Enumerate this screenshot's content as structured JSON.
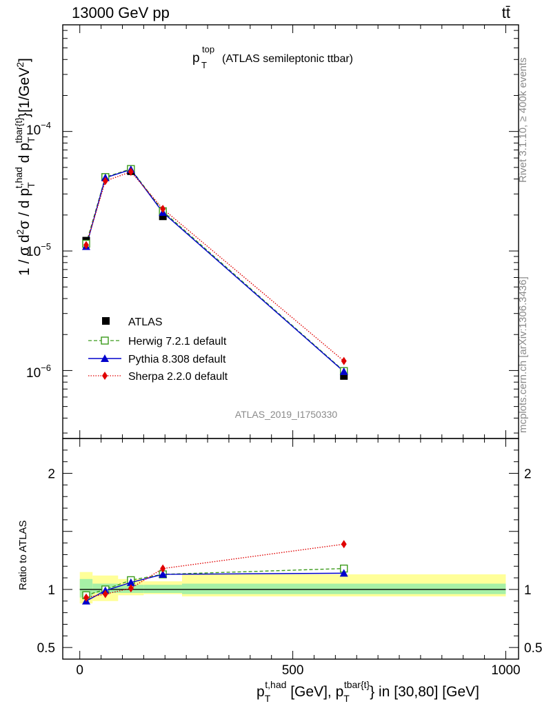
{
  "header": {
    "left": "13000 GeV pp",
    "right": "tt̄"
  },
  "side": {
    "rivet": "Rivet 3.1.10, ≥ 400k events",
    "mcplots": "mcplots.cern.ch [arXiv:1306.3436]"
  },
  "watermark": "ATLAS_2019_I1750330",
  "colors": {
    "atlas": "#000000",
    "herwig": "#3a9a1a",
    "pythia": "#0000cc",
    "sherpa": "#e00000",
    "band_inner": "#a6f0a6",
    "band_outer": "#ffff99"
  },
  "chart_data": [
    {
      "type": "line",
      "title_main": "p",
      "title_sub": "T",
      "title_sup": "top",
      "title_rest": "(ATLAS semileptonic ttbar)",
      "ylabel": "1 / σ d²σ / d p_T^{t,had} d p_T^{tbar{t}} [1/GeV²]",
      "yscale": "log",
      "ylim": [
        2.7e-07,
        0.00078
      ],
      "xlim": [
        -40,
        1030
      ],
      "ytick_labels": {
        "e6": "10",
        "e5": "10",
        "e4": "10",
        "e6_exp": "−6",
        "e5_exp": "−5",
        "e4_exp": "−4"
      },
      "legend": [
        {
          "name": "ATLAS"
        },
        {
          "name": "Herwig 7.2.1 default"
        },
        {
          "name": "Pythia 8.308 default"
        },
        {
          "name": "Sherpa 2.2.0 default"
        }
      ],
      "series": [
        {
          "name": "ATLAS",
          "x": [
            15,
            60,
            120,
            195,
            620
          ],
          "y": [
            1.22e-05,
            4.15e-05,
            4.65e-05,
            1.95e-05,
            9e-07
          ]
        },
        {
          "name": "Herwig 7.2.1 default",
          "x": [
            15,
            60,
            120,
            195,
            620
          ],
          "y": [
            1.15e-05,
            4.15e-05,
            4.85e-05,
            2.15e-05,
            9.9e-07
          ]
        },
        {
          "name": "Pythia 8.308 default",
          "x": [
            15,
            60,
            120,
            195,
            620
          ],
          "y": [
            1.09e-05,
            4.1e-05,
            4.8e-05,
            2.1e-05,
            9.8e-07
          ]
        },
        {
          "name": "Sherpa 2.2.0 default",
          "x": [
            15,
            60,
            120,
            195,
            620
          ],
          "y": [
            1.12e-05,
            3.85e-05,
            4.6e-05,
            2.25e-05,
            1.2e-06
          ]
        }
      ]
    },
    {
      "type": "line",
      "ylabel": "Ratio to ATLAS",
      "ylim": [
        0.4,
        2.3
      ],
      "xlim": [
        -40,
        1030
      ],
      "yticks": [
        0.5,
        1,
        2
      ],
      "ytick_labels": [
        "0.5",
        "1",
        "2"
      ],
      "xticks": [
        0,
        500,
        1000
      ],
      "xtick_labels": [
        "0",
        "500",
        "1000"
      ],
      "xlabel": "p_T^{t,had} [GeV], p_T^{tbar{t}} in [30,80] [GeV]",
      "bands": [
        {
          "x": [
            0,
            30
          ],
          "inner": [
            0.93,
            1.09
          ],
          "outer": [
            0.88,
            1.15
          ]
        },
        {
          "x": [
            30,
            90
          ],
          "inner": [
            0.97,
            1.05
          ],
          "outer": [
            0.9,
            1.12
          ]
        },
        {
          "x": [
            90,
            150
          ],
          "inner": [
            0.97,
            1.04
          ],
          "outer": [
            0.95,
            1.09
          ]
        },
        {
          "x": [
            150,
            240
          ],
          "inner": [
            0.97,
            1.04
          ],
          "outer": [
            0.96,
            1.07
          ]
        },
        {
          "x": [
            240,
            1000
          ],
          "inner": [
            0.96,
            1.05
          ],
          "outer": [
            0.94,
            1.13
          ]
        }
      ],
      "series": [
        {
          "name": "Herwig 7.2.1 default",
          "x": [
            15,
            60,
            120,
            195,
            620
          ],
          "y": [
            0.95,
            1.0,
            1.08,
            1.13,
            1.18
          ]
        },
        {
          "name": "Pythia 8.308 default",
          "x": [
            15,
            60,
            120,
            195,
            620
          ],
          "y": [
            0.9,
            0.99,
            1.06,
            1.13,
            1.14
          ]
        },
        {
          "name": "Sherpa 2.2.0 default",
          "x": [
            15,
            60,
            120,
            195,
            620
          ],
          "y": [
            0.93,
            0.96,
            1.01,
            1.18,
            1.39
          ]
        }
      ]
    }
  ]
}
